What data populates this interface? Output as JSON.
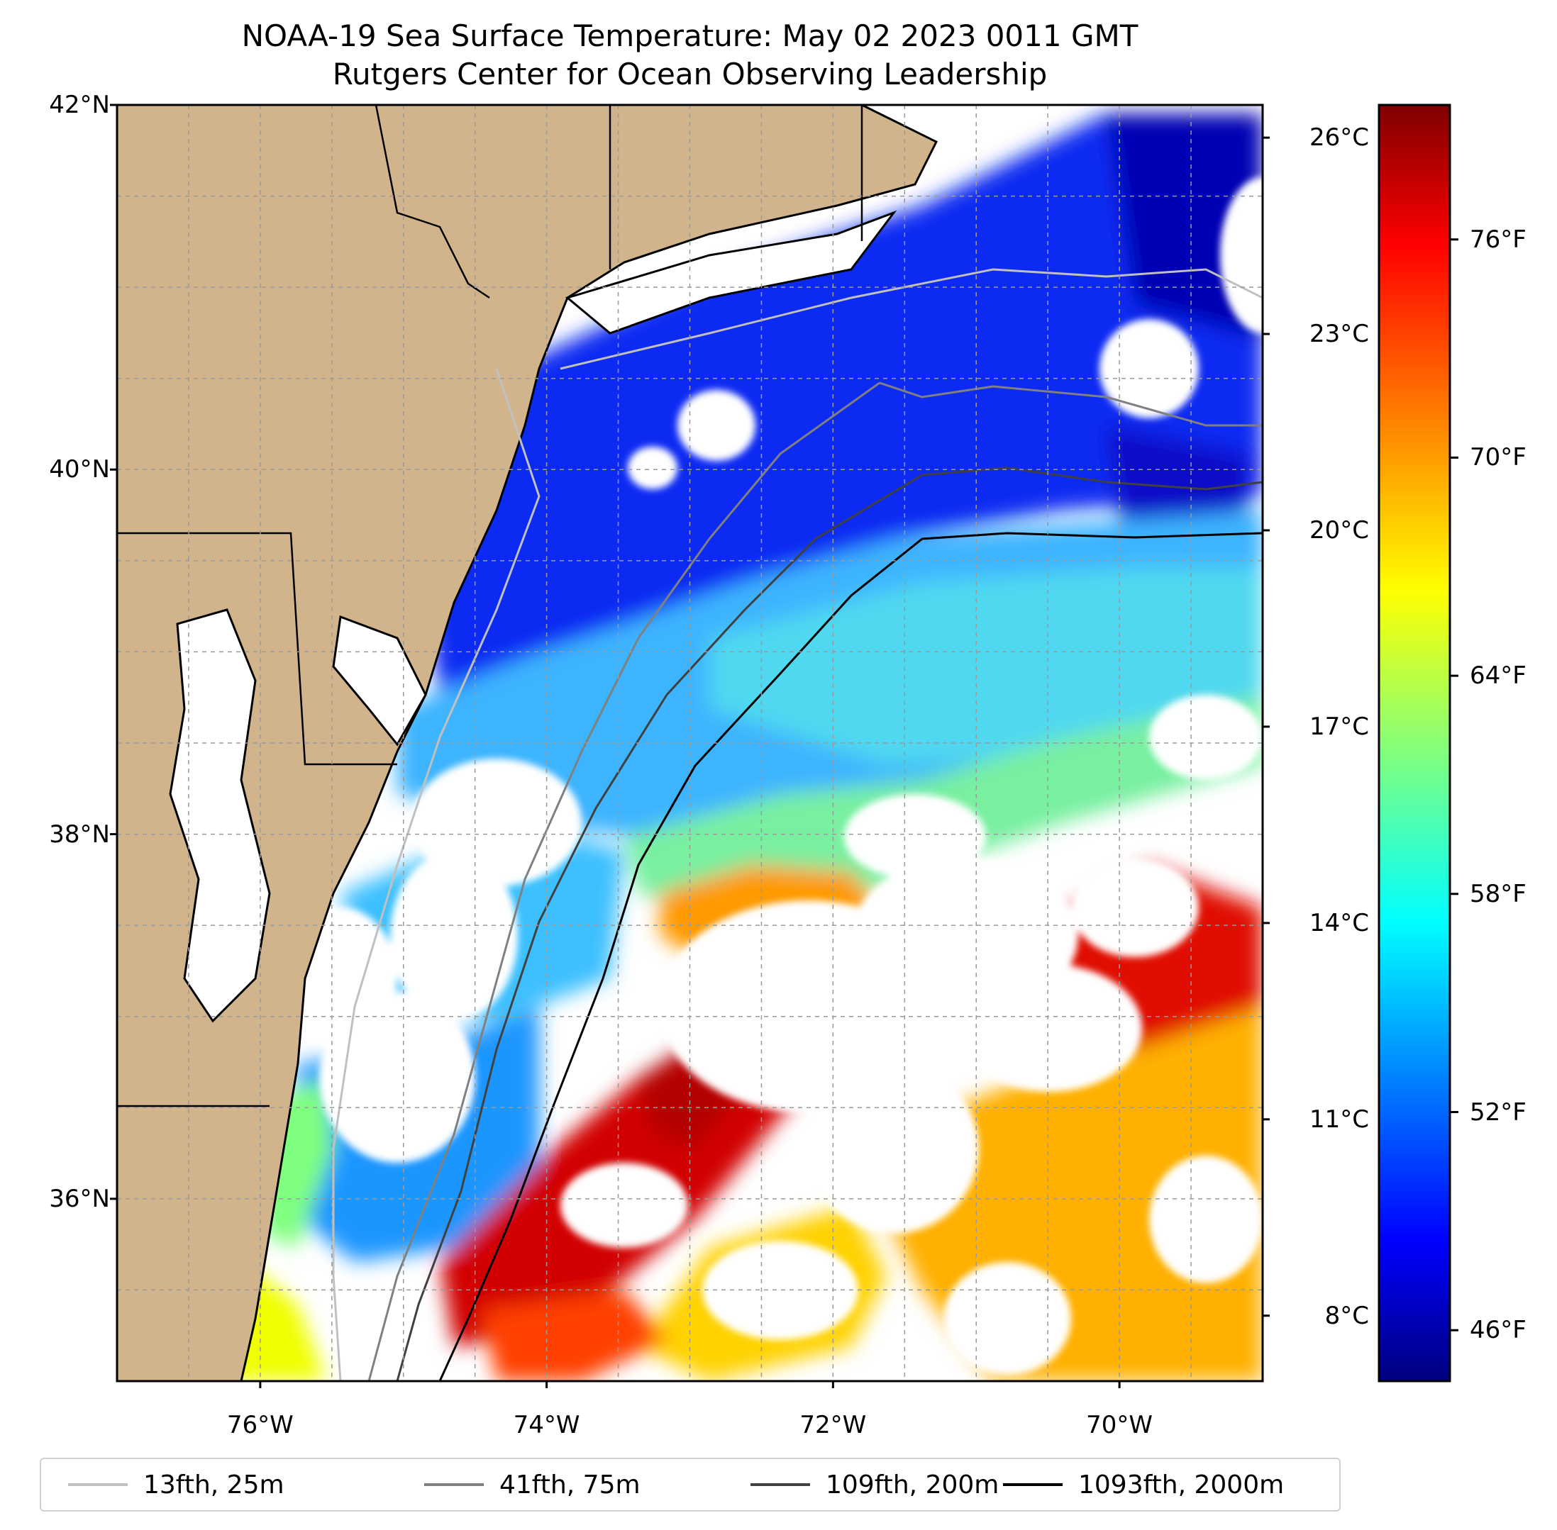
{
  "title": {
    "line1": "NOAA-19 Sea Surface Temperature: May 02 2023 0011 GMT",
    "line2": "Rutgers Center for Ocean Observing Leadership"
  },
  "map": {
    "lat_range": [
      35,
      42
    ],
    "lon_range": [
      -77,
      -69
    ],
    "lat_labels": [
      "42°N",
      "40°N",
      "38°N",
      "36°N"
    ],
    "lon_labels": [
      "76°W",
      "74°W",
      "72°W",
      "70°W"
    ],
    "land_color": "#d2b48c",
    "cloud_mask_color": "#ffffff",
    "gridlines": true
  },
  "colorbar": {
    "colormap": "jet",
    "celsius_ticks": [
      "26°C",
      "23°C",
      "20°C",
      "17°C",
      "14°C",
      "11°C",
      "8°C"
    ],
    "fahrenheit_ticks": [
      "76°F",
      "70°F",
      "64°F",
      "58°F",
      "52°F",
      "46°F"
    ],
    "celsius_values": [
      26,
      23,
      20,
      17,
      14,
      11,
      8
    ],
    "fahrenheit_values": [
      76,
      70,
      64,
      58,
      52,
      46
    ],
    "range_f": [
      44.6,
      79.7
    ]
  },
  "legend": {
    "items": [
      {
        "label": "13fth, 25m",
        "color": "#c0c0c0"
      },
      {
        "label": "41fth, 75m",
        "color": "#808080"
      },
      {
        "label": "109fth, 200m",
        "color": "#404040"
      },
      {
        "label": "1093fth, 2000m",
        "color": "#000000"
      }
    ]
  }
}
